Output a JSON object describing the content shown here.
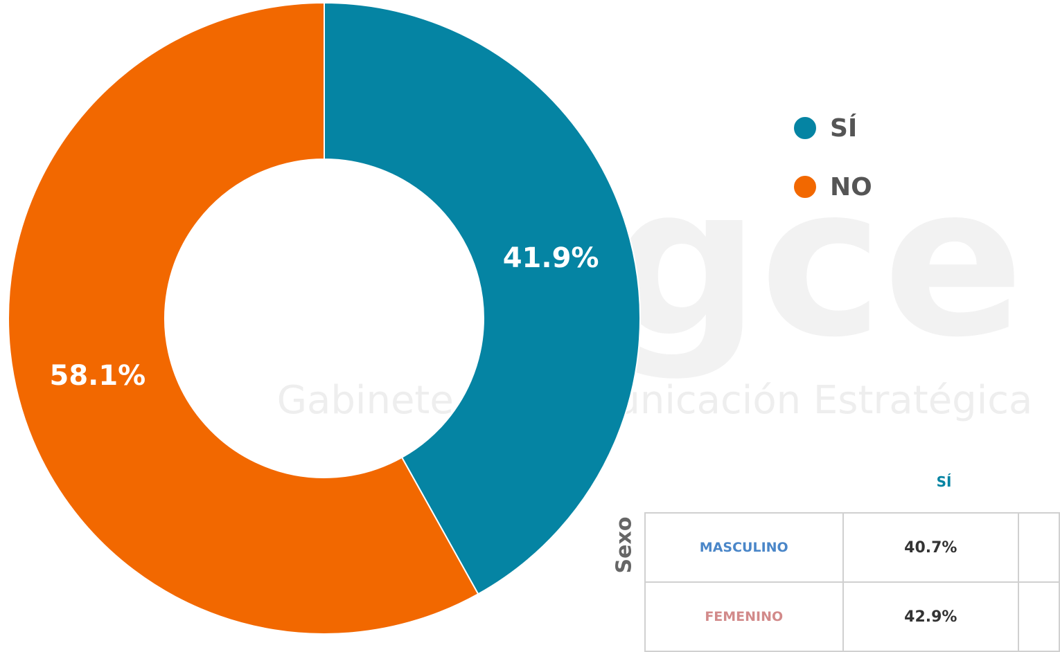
{
  "chart_data": {
    "type": "donut",
    "categories": [
      "SÍ",
      "NO"
    ],
    "values": [
      41.9,
      58.1
    ],
    "value_labels": [
      "41.9%",
      "58.1%"
    ],
    "colors": [
      "#0584a3",
      "#f26800"
    ],
    "legend": "right"
  },
  "watermark": {
    "logo": "gce",
    "text": "Gabinete de Comunicación Estratégica"
  },
  "table": {
    "group_label": "Sexo",
    "header": [
      "SÍ"
    ],
    "rows": [
      [
        "MASCULINO",
        "40.7%"
      ],
      [
        "FEMENINO",
        "42.9%"
      ]
    ]
  }
}
